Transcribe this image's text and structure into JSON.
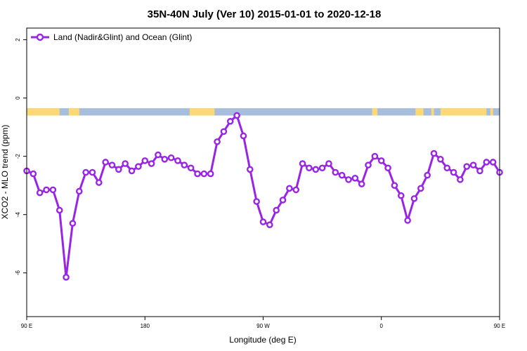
{
  "chart_data": {
    "type": "line",
    "title": "35N-40N July (Ver 10)   2015-01-01 to 2020-12-18",
    "xlabel": "Longitude (deg E)",
    "ylabel": "XCO2 - MLO trend (ppm)",
    "xlim": [
      90,
      450
    ],
    "ylim": [
      -7.5,
      2.4
    ],
    "x_tick_values": [
      90,
      180,
      270,
      360,
      450
    ],
    "x_tick_labels": [
      "90 E",
      "180",
      "90 W",
      "0",
      "90 E"
    ],
    "y_tick_values": [
      -6,
      -4,
      -2,
      0,
      2
    ],
    "y_tick_labels": [
      "-6",
      "-4",
      "-2",
      "0",
      "2"
    ],
    "legend": {
      "placement": "top-left"
    },
    "grid": false,
    "colors": {
      "series": "#9a24e6",
      "land": "#fcd975",
      "ocean": "#a6bddb"
    },
    "land_ocean_strip": {
      "y_range": [
        -0.6,
        -0.35
      ],
      "land_spans": [
        [
          90,
          115
        ],
        [
          122,
          130
        ],
        [
          214,
          233
        ],
        [
          353,
          357
        ],
        [
          386,
          392
        ],
        [
          398,
          400
        ],
        [
          405,
          440
        ],
        [
          443,
          445
        ]
      ]
    },
    "series": [
      {
        "name": "Land (Nadir&Glint) and Ocean (Glint)",
        "x": [
          90,
          95,
          100,
          105,
          110,
          115,
          120,
          125,
          130,
          135,
          140,
          145,
          150,
          155,
          160,
          165,
          170,
          175,
          180,
          185,
          190,
          195,
          200,
          205,
          210,
          215,
          220,
          225,
          230,
          235,
          240,
          245,
          250,
          255,
          260,
          265,
          270,
          275,
          280,
          285,
          290,
          295,
          300,
          305,
          310,
          315,
          320,
          325,
          330,
          335,
          340,
          345,
          350,
          355,
          360,
          365,
          370,
          375,
          380,
          385,
          390,
          395,
          400,
          405,
          410,
          415,
          420,
          425,
          430,
          435,
          440,
          445,
          450
        ],
        "values": [
          -2.5,
          -2.6,
          -3.25,
          -3.15,
          -3.15,
          -3.85,
          -6.15,
          -4.3,
          -3.2,
          -2.55,
          -2.55,
          -2.9,
          -2.2,
          -2.3,
          -2.45,
          -2.25,
          -2.5,
          -2.35,
          -2.15,
          -2.25,
          -1.95,
          -2.1,
          -2.05,
          -2.15,
          -2.3,
          -2.4,
          -2.6,
          -2.6,
          -2.6,
          -1.5,
          -1.15,
          -0.8,
          -0.6,
          -1.3,
          -2.45,
          -3.55,
          -4.25,
          -4.35,
          -3.85,
          -3.5,
          -3.1,
          -3.15,
          -2.25,
          -2.4,
          -2.45,
          -2.4,
          -2.25,
          -2.55,
          -2.65,
          -2.8,
          -2.75,
          -2.95,
          -2.3,
          -2.0,
          -2.15,
          -2.4,
          -3.0,
          -3.35,
          -4.2,
          -3.45,
          -3.1,
          -2.65,
          -1.9,
          -2.1,
          -2.4,
          -2.55,
          -2.8,
          -2.35,
          -2.3,
          -2.5,
          -2.2,
          -2.2,
          -2.55
        ]
      }
    ]
  }
}
